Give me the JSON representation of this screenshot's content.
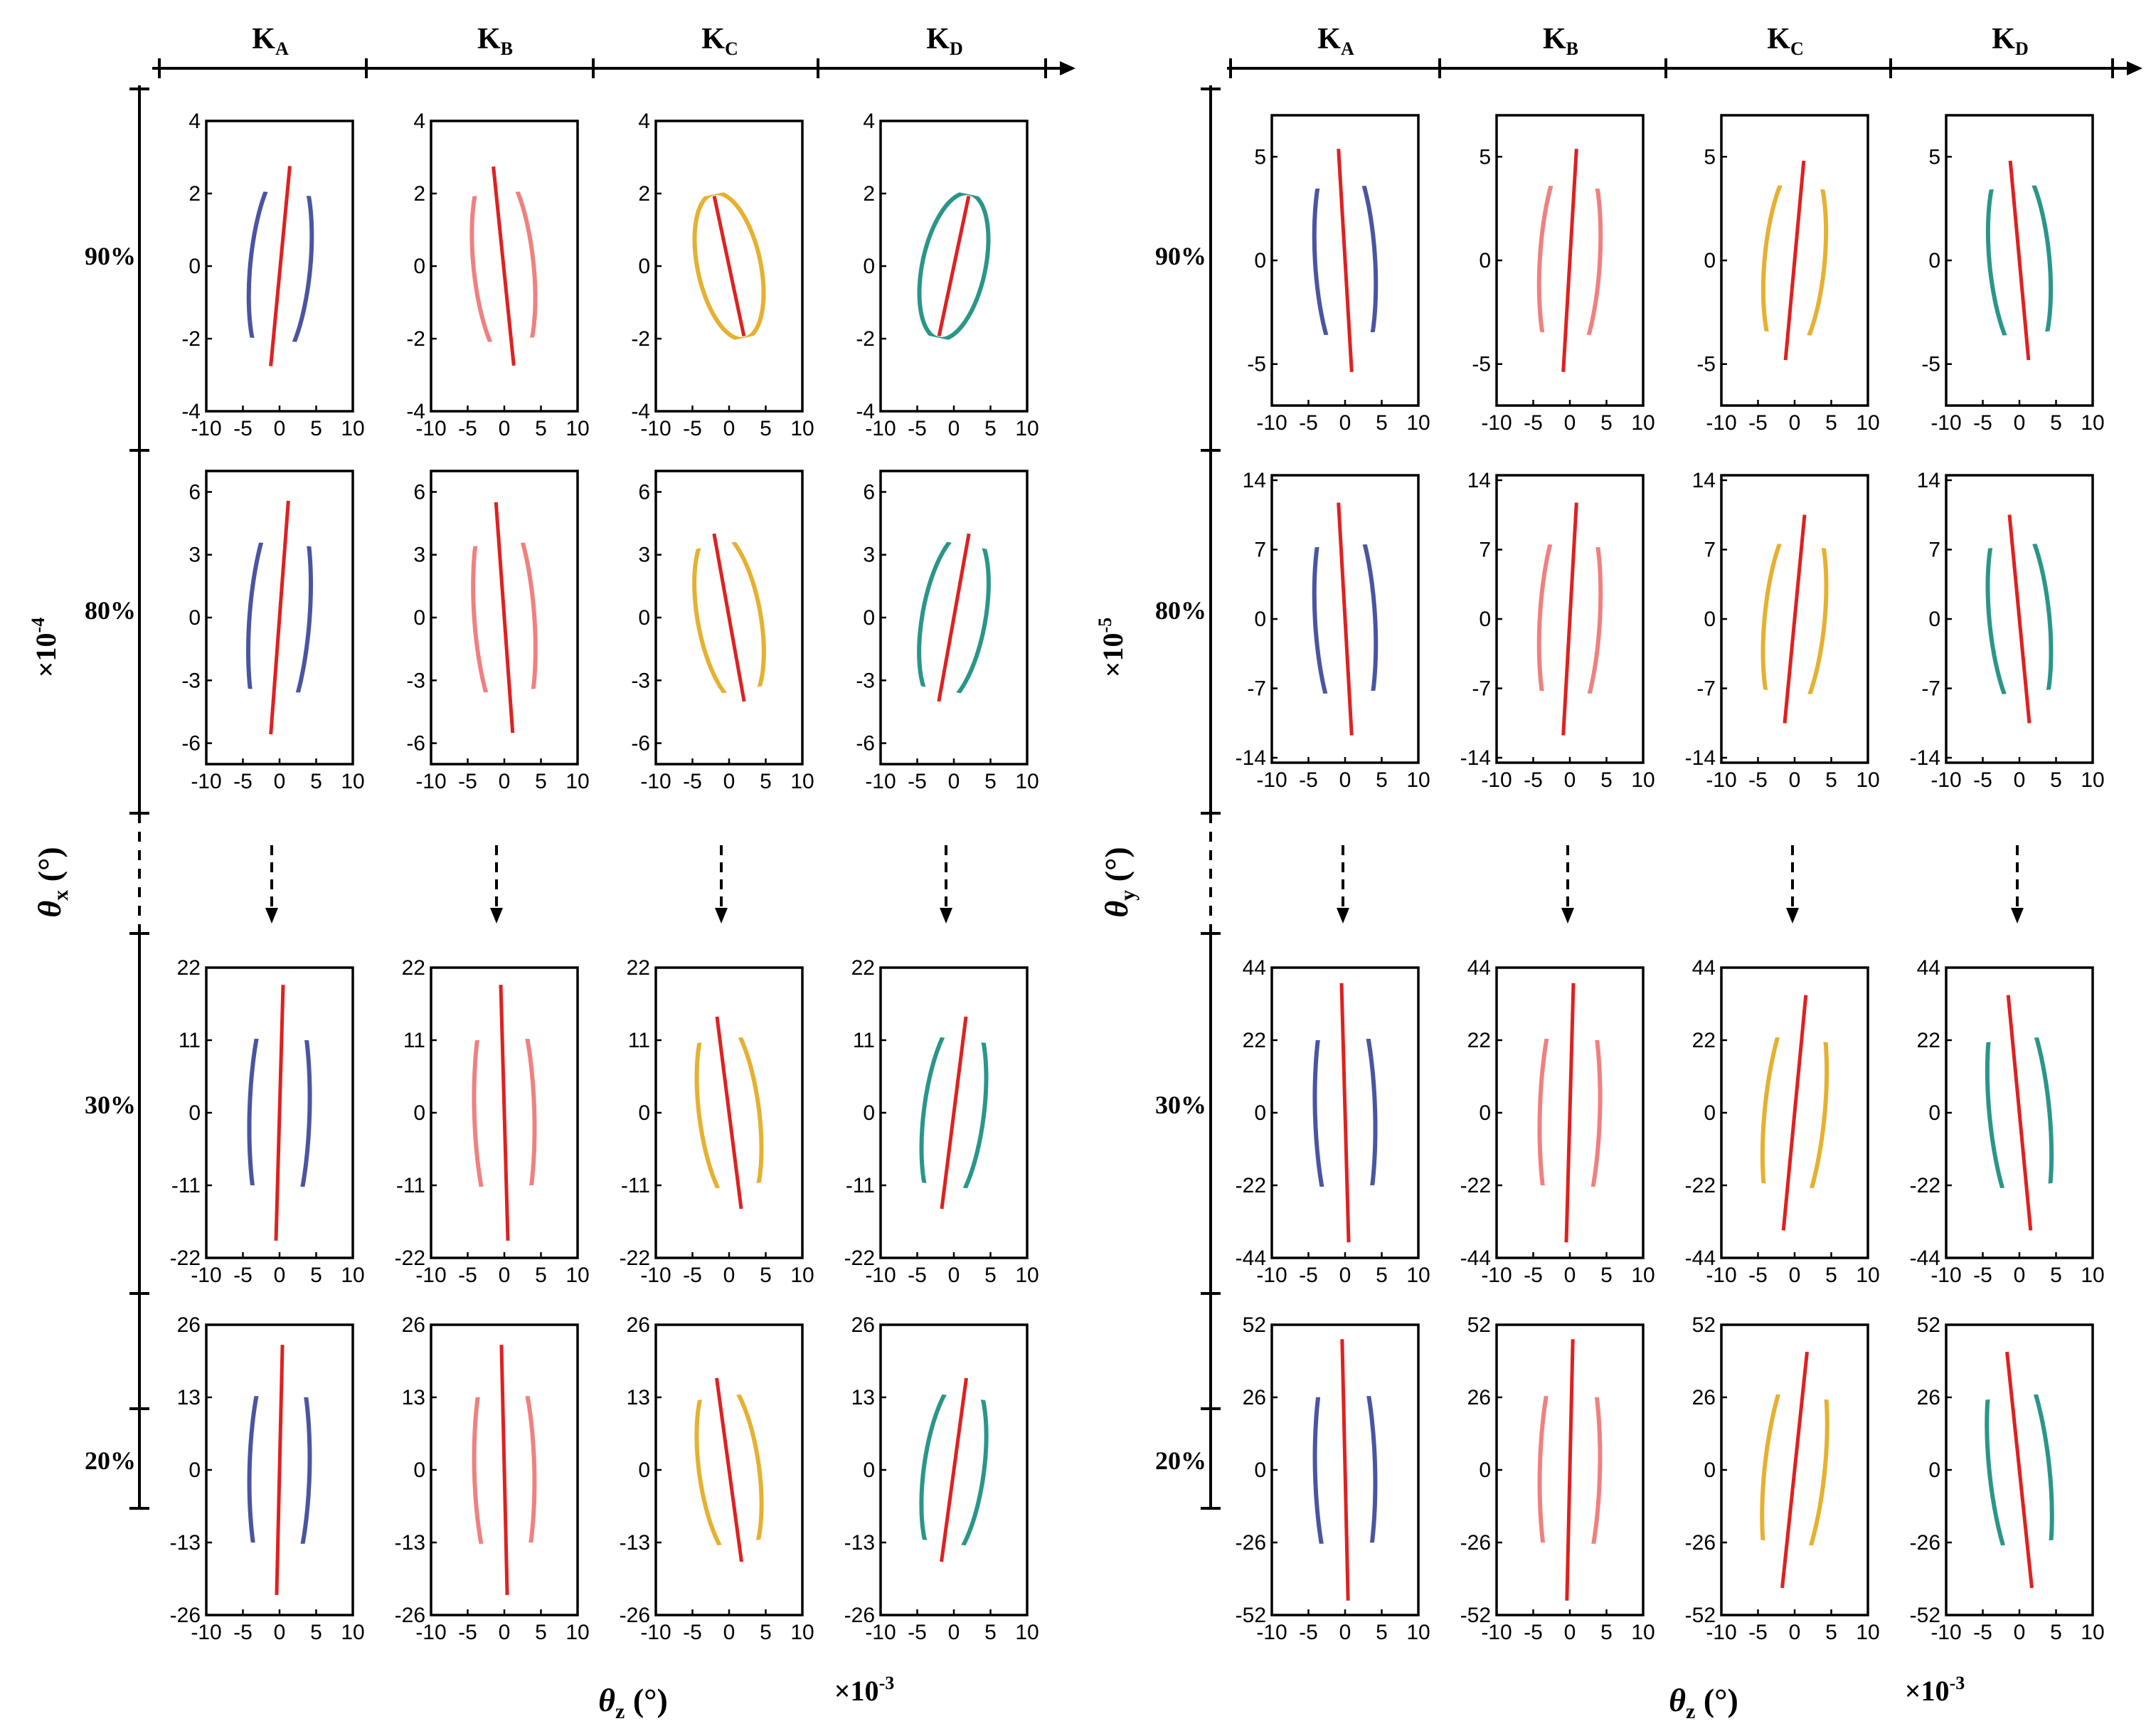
{
  "chart_data": [
    {
      "type": "scatter",
      "panel": "left",
      "description_axis": "theta_x vs theta_z",
      "column_headers": [
        {
          "main": "K",
          "sub": "A"
        },
        {
          "main": "K",
          "sub": "B"
        },
        {
          "main": "K",
          "sub": "C"
        },
        {
          "main": "K",
          "sub": "D"
        }
      ],
      "row_labels": [
        "90%",
        "80%",
        "30%",
        "20%"
      ],
      "ylabel": {
        "symbol": "θ",
        "sub": "x",
        "unit": " (°)"
      },
      "y_multiplier": {
        "base": "×10",
        "exp": "-4"
      },
      "xlabel": {
        "symbol": "θ",
        "sub": "z",
        "unit": " (°)"
      },
      "x_multiplier": {
        "base": "×10",
        "exp": "-3"
      },
      "xlim": [
        -10,
        10
      ],
      "xticks": [
        "-10",
        "-5",
        "0",
        "5",
        "10"
      ],
      "rows": [
        {
          "ylim": [
            -4,
            4
          ],
          "yticks": [
            "-4",
            "-2",
            "0",
            "2",
            "4"
          ],
          "ellipses": [
            {
              "series": "KA",
              "cx": 0.1,
              "cy": 0,
              "rx": 6.8,
              "ry": 2.9,
              "angle": 72
            },
            {
              "series": "KB",
              "cx": -0.1,
              "cy": 0,
              "rx": 6.9,
              "ry": 2.9,
              "angle": -71
            },
            {
              "series": "KC",
              "cx": 0,
              "cy": 0,
              "rx": 6.0,
              "ry": 2.3,
              "angle": -57
            },
            {
              "series": "KD",
              "cx": 0,
              "cy": 0,
              "rx": 6.0,
              "ry": 2.3,
              "angle": 57
            }
          ]
        },
        {
          "ylim": [
            -7,
            7
          ],
          "yticks": [
            "-6",
            "-3",
            "0",
            "3",
            "6"
          ],
          "ellipses": [
            {
              "series": "KA",
              "cx": 0,
              "cy": 0,
              "rx": 7.0,
              "ry": 5.8,
              "angle": 74
            },
            {
              "series": "KB",
              "cx": 0,
              "cy": 0,
              "rx": 7.1,
              "ry": 5.7,
              "angle": -75
            },
            {
              "series": "KC",
              "cx": 0,
              "cy": 0,
              "rx": 7.3,
              "ry": 4.5,
              "angle": -63
            },
            {
              "series": "KD",
              "cx": 0,
              "cy": 0,
              "rx": 7.3,
              "ry": 4.5,
              "angle": 63
            }
          ]
        },
        {
          "ylim": [
            -22,
            22
          ],
          "yticks": [
            "-22",
            "-11",
            "0",
            "11",
            "22"
          ],
          "ellipses": [
            {
              "series": "KA",
              "cx": 0,
              "cy": 0,
              "rx": 7.5,
              "ry": 19.5,
              "angle": 84
            },
            {
              "series": "KB",
              "cx": 0,
              "cy": 0,
              "rx": 7.5,
              "ry": 19.5,
              "angle": -84
            },
            {
              "series": "KC",
              "cx": 0,
              "cy": 0,
              "rx": 7.8,
              "ry": 15.5,
              "angle": -70
            },
            {
              "series": "KD",
              "cx": 0,
              "cy": 0,
              "rx": 7.8,
              "ry": 15.5,
              "angle": 70
            }
          ]
        },
        {
          "ylim": [
            -26,
            26
          ],
          "yticks": [
            "-26",
            "-13",
            "0",
            "13",
            "26"
          ],
          "ellipses": [
            {
              "series": "KA",
              "cx": 0,
              "cy": 0,
              "rx": 7.3,
              "ry": 22.5,
              "angle": 85
            },
            {
              "series": "KB",
              "cx": 0,
              "cy": 0,
              "rx": 7.3,
              "ry": 22.5,
              "angle": -85
            },
            {
              "series": "KC",
              "cx": 0,
              "cy": 0,
              "rx": 8.0,
              "ry": 17.5,
              "angle": -70
            },
            {
              "series": "KD",
              "cx": 0,
              "cy": 0,
              "rx": 8.0,
              "ry": 17.5,
              "angle": 70
            }
          ]
        }
      ]
    },
    {
      "type": "scatter",
      "panel": "right",
      "description_axis": "theta_y vs theta_z",
      "column_headers": [
        {
          "main": "K",
          "sub": "A"
        },
        {
          "main": "K",
          "sub": "B"
        },
        {
          "main": "K",
          "sub": "C"
        },
        {
          "main": "K",
          "sub": "D"
        }
      ],
      "row_labels": [
        "90%",
        "80%",
        "30%",
        "20%"
      ],
      "ylabel": {
        "symbol": "θ",
        "sub": "y",
        "unit": " (°)"
      },
      "y_multiplier": {
        "base": "×10",
        "exp": "-5"
      },
      "xlabel": {
        "symbol": "θ",
        "sub": "z",
        "unit": " (°)"
      },
      "x_multiplier": {
        "base": "×10",
        "exp": "-3"
      },
      "xlim": [
        -10,
        10
      ],
      "xticks": [
        "-10",
        "-5",
        "0",
        "5",
        "10"
      ],
      "rows": [
        {
          "ylim": [
            -7,
            7
          ],
          "yticks": [
            "-5",
            "0",
            "5"
          ],
          "ellipses": [
            {
              "series": "KA",
              "cx": 0,
              "cy": 0,
              "rx": 7.0,
              "ry": 5.5,
              "angle": -78
            },
            {
              "series": "KB",
              "cx": 0,
              "cy": 0,
              "rx": 7.0,
              "ry": 5.5,
              "angle": 78
            },
            {
              "series": "KC",
              "cx": 0,
              "cy": 0,
              "rx": 7.3,
              "ry": 5.0,
              "angle": 74
            },
            {
              "series": "KD",
              "cx": 0,
              "cy": 0,
              "rx": 7.3,
              "ry": 5.0,
              "angle": -74
            }
          ]
        },
        {
          "ylim": [
            -14.5,
            14.5
          ],
          "yticks": [
            "-14",
            "-7",
            "0",
            "7",
            "14"
          ],
          "ellipses": [
            {
              "series": "KA",
              "cx": 0,
              "cy": 0,
              "rx": 7.0,
              "ry": 12.0,
              "angle": -78
            },
            {
              "series": "KB",
              "cx": 0,
              "cy": 0,
              "rx": 7.0,
              "ry": 12.0,
              "angle": 78
            },
            {
              "series": "KC",
              "cx": 0,
              "cy": 0,
              "rx": 7.5,
              "ry": 11.0,
              "angle": 73
            },
            {
              "series": "KD",
              "cx": 0,
              "cy": 0,
              "rx": 7.5,
              "ry": 11.0,
              "angle": -73
            }
          ]
        },
        {
          "ylim": [
            -44,
            44
          ],
          "yticks": [
            "-44",
            "-22",
            "0",
            "22",
            "44"
          ],
          "ellipses": [
            {
              "series": "KA",
              "cx": 0,
              "cy": 0,
              "rx": 7.5,
              "ry": 39.5,
              "angle": -84
            },
            {
              "series": "KB",
              "cx": 0,
              "cy": 0,
              "rx": 7.5,
              "ry": 39.5,
              "angle": 84
            },
            {
              "series": "KC",
              "cx": 0,
              "cy": 0,
              "rx": 8.0,
              "ry": 37.5,
              "angle": 72
            },
            {
              "series": "KD",
              "cx": 0,
              "cy": 0,
              "rx": 8.0,
              "ry": 37.5,
              "angle": -72
            }
          ]
        },
        {
          "ylim": [
            -52,
            52
          ],
          "yticks": [
            "-52",
            "-26",
            "0",
            "26",
            "52"
          ],
          "ellipses": [
            {
              "series": "KA",
              "cx": 0,
              "cy": 0,
              "rx": 7.5,
              "ry": 47.0,
              "angle": -85
            },
            {
              "series": "KB",
              "cx": 0,
              "cy": 0,
              "rx": 7.5,
              "ry": 47.0,
              "angle": 85
            },
            {
              "series": "KC",
              "cx": 0,
              "cy": 0,
              "rx": 8.0,
              "ry": 45.0,
              "angle": 70
            },
            {
              "series": "KD",
              "cx": 0,
              "cy": 0,
              "rx": 8.0,
              "ry": 45.0,
              "angle": -70
            }
          ]
        }
      ]
    }
  ],
  "series_colors": {
    "KA": "#4a55a2",
    "KB": "#f08080",
    "KC": "#e6b030",
    "KD": "#2a968a",
    "axis_line": "#e02020"
  }
}
